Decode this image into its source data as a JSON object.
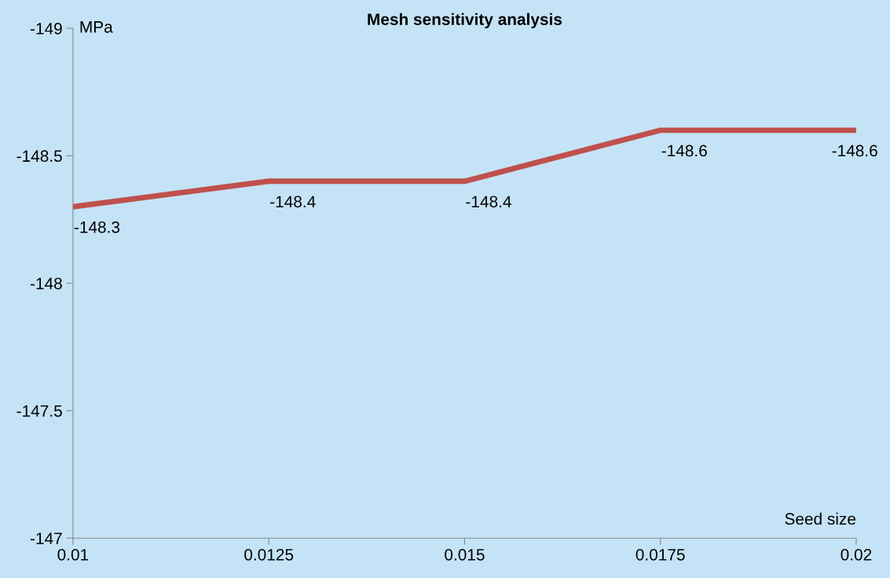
{
  "chart_data": {
    "type": "line",
    "title": "Mesh sensitivity analysis",
    "xlabel": "Seed size",
    "ylabel": "MPa",
    "x": [
      0.01,
      0.0125,
      0.015,
      0.0175,
      0.02
    ],
    "series": [
      {
        "color": "#c0504d",
        "values": [
          -148.3,
          -148.4,
          -148.4,
          -148.6,
          -148.6
        ]
      }
    ],
    "xlim": [
      0.01,
      0.02
    ],
    "xticks": [
      0.01,
      0.0125,
      0.015,
      0.0175,
      0.02
    ],
    "ylim": [
      -147,
      -149
    ],
    "yticks": [
      -149,
      -148.5,
      -148,
      -147.5,
      -147
    ],
    "data_labels": true,
    "grid": false,
    "legend": false,
    "marker": "none",
    "line_style": "solid"
  }
}
